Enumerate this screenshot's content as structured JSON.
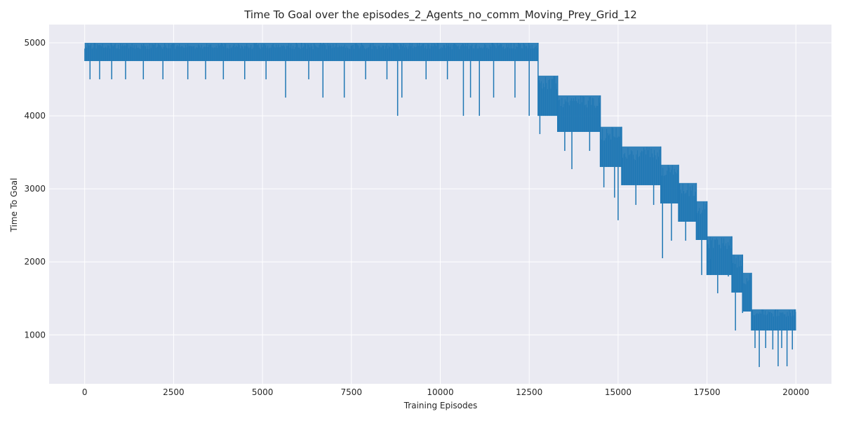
{
  "chart_data": {
    "type": "line",
    "title": "Time To Goal over the episodes_2_Agents_no_comm_Moving_Prey_Grid_12",
    "xlabel": "Training Episodes",
    "ylabel": "Time To Goal",
    "xlim": [
      -1000,
      21000
    ],
    "ylim": [
      330,
      5250
    ],
    "xticks": [
      0,
      2500,
      5000,
      7500,
      10000,
      12500,
      15000,
      17500,
      20000
    ],
    "yticks": [
      1000,
      2000,
      3000,
      4000,
      5000
    ],
    "grid": true,
    "legend": "none",
    "background": "#eaeaf2",
    "gridColor": "#ffffff",
    "series": [
      {
        "color": "#1f77b4",
        "band_segments": [
          {
            "x": [
              0,
              12750
            ],
            "high": 5000,
            "low": 4750
          },
          {
            "x": [
              12750,
              13300
            ],
            "high": 4550,
            "low": 4000
          },
          {
            "x": [
              13300,
              14500
            ],
            "high": 4280,
            "low": 3780
          },
          {
            "x": [
              14500,
              15100
            ],
            "high": 3850,
            "low": 3300
          },
          {
            "x": [
              15100,
              16200
            ],
            "high": 3580,
            "low": 3050
          },
          {
            "x": [
              16200,
              16700
            ],
            "high": 3330,
            "low": 2800
          },
          {
            "x": [
              16700,
              17200
            ],
            "high": 3080,
            "low": 2550
          },
          {
            "x": [
              17200,
              17500
            ],
            "high": 2830,
            "low": 2300
          },
          {
            "x": [
              17500,
              18200
            ],
            "high": 2350,
            "low": 1820
          },
          {
            "x": [
              18200,
              18500
            ],
            "high": 2100,
            "low": 1580
          },
          {
            "x": [
              18500,
              18750
            ],
            "high": 1850,
            "low": 1320
          },
          {
            "x": [
              18750,
              20000
            ],
            "high": 1350,
            "low": 1060
          }
        ],
        "dips": [
          {
            "x": 150,
            "y": 4500
          },
          {
            "x": 420,
            "y": 4500
          },
          {
            "x": 760,
            "y": 4500
          },
          {
            "x": 1150,
            "y": 4500
          },
          {
            "x": 1650,
            "y": 4500
          },
          {
            "x": 2200,
            "y": 4500
          },
          {
            "x": 2900,
            "y": 4500
          },
          {
            "x": 3400,
            "y": 4500
          },
          {
            "x": 3900,
            "y": 4500
          },
          {
            "x": 4500,
            "y": 4500
          },
          {
            "x": 5100,
            "y": 4500
          },
          {
            "x": 5650,
            "y": 4250
          },
          {
            "x": 6300,
            "y": 4500
          },
          {
            "x": 6700,
            "y": 4250
          },
          {
            "x": 7300,
            "y": 4250
          },
          {
            "x": 7900,
            "y": 4500
          },
          {
            "x": 8500,
            "y": 4500
          },
          {
            "x": 8800,
            "y": 4000
          },
          {
            "x": 8920,
            "y": 4250
          },
          {
            "x": 9600,
            "y": 4500
          },
          {
            "x": 10200,
            "y": 4500
          },
          {
            "x": 10650,
            "y": 4000
          },
          {
            "x": 10850,
            "y": 4250
          },
          {
            "x": 11100,
            "y": 4000
          },
          {
            "x": 11500,
            "y": 4250
          },
          {
            "x": 12100,
            "y": 4250
          },
          {
            "x": 12500,
            "y": 4000
          },
          {
            "x": 12800,
            "y": 3750
          },
          {
            "x": 13500,
            "y": 3520
          },
          {
            "x": 13700,
            "y": 3270
          },
          {
            "x": 14200,
            "y": 3520
          },
          {
            "x": 14600,
            "y": 3020
          },
          {
            "x": 14900,
            "y": 2880
          },
          {
            "x": 15000,
            "y": 2570
          },
          {
            "x": 15500,
            "y": 2780
          },
          {
            "x": 16000,
            "y": 2780
          },
          {
            "x": 16250,
            "y": 2050
          },
          {
            "x": 16500,
            "y": 2290
          },
          {
            "x": 16900,
            "y": 2290
          },
          {
            "x": 17350,
            "y": 1820
          },
          {
            "x": 17600,
            "y": 2040
          },
          {
            "x": 17800,
            "y": 1570
          },
          {
            "x": 18100,
            "y": 1800
          },
          {
            "x": 18300,
            "y": 1060
          },
          {
            "x": 18500,
            "y": 1300
          },
          {
            "x": 18850,
            "y": 820
          },
          {
            "x": 18970,
            "y": 560
          },
          {
            "x": 19150,
            "y": 820
          },
          {
            "x": 19350,
            "y": 800
          },
          {
            "x": 19500,
            "y": 570
          },
          {
            "x": 19600,
            "y": 820
          },
          {
            "x": 19750,
            "y": 570
          },
          {
            "x": 19900,
            "y": 800
          }
        ]
      }
    ]
  }
}
